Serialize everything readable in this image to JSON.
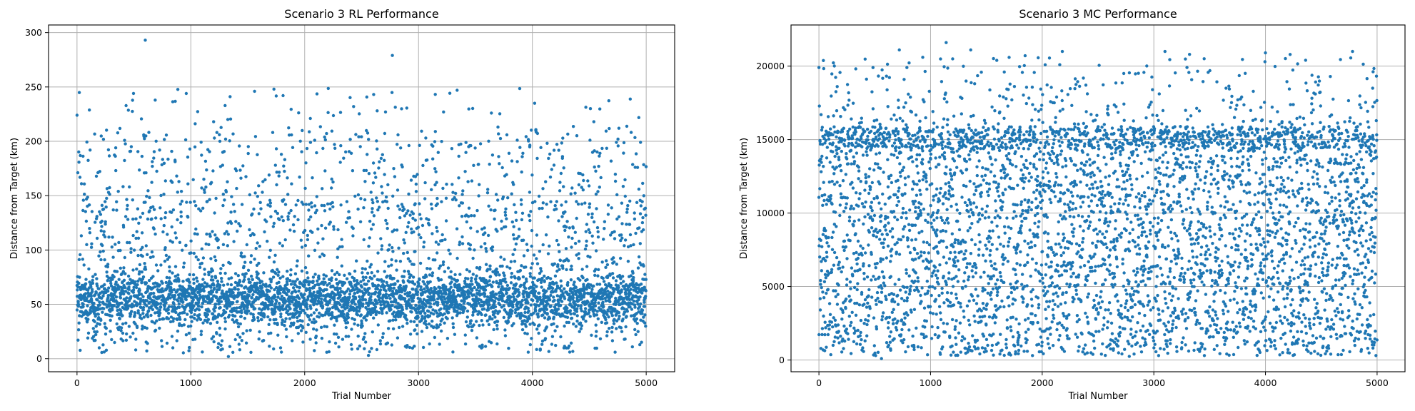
{
  "chart_data": [
    {
      "type": "scatter",
      "title": "Scenario 3 RL Performance",
      "xlabel": "Trial Number",
      "ylabel": "Distance from Target (km)",
      "xlim": [
        -250,
        5250
      ],
      "ylim": [
        -12,
        307
      ],
      "xticks": [
        0,
        1000,
        2000,
        3000,
        4000,
        5000
      ],
      "yticks": [
        0,
        50,
        100,
        150,
        200,
        250,
        300
      ],
      "grid": true,
      "color": "#1f77b4",
      "n_points": 5000,
      "distribution": "dense band mostly 0-150 km, concentrated around 20-80 km, sparse outliers up to ~295 km",
      "series": [
        {
          "values_sample": [
            {
              "x": 600,
              "y": 293
            },
            {
              "x": 2770,
              "y": 279
            },
            {
              "x": 1730,
              "y": 248
            },
            {
              "x": 1560,
              "y": 246
            },
            {
              "x": 960,
              "y": 244
            },
            {
              "x": 1810,
              "y": 242
            },
            {
              "x": 4020,
              "y": 235
            },
            {
              "x": 2430,
              "y": 232
            },
            {
              "x": 0,
              "y": 224
            },
            {
              "x": 3220,
              "y": 227
            },
            {
              "x": 3640,
              "y": 226
            },
            {
              "x": 2710,
              "y": 227
            },
            {
              "x": 4540,
              "y": 218
            },
            {
              "x": 1200,
              "y": 218
            },
            {
              "x": 2050,
              "y": 221
            },
            {
              "x": 4950,
              "y": 199
            },
            {
              "x": 4760,
              "y": 212
            },
            {
              "x": 2560,
              "y": 3
            },
            {
              "x": 1330,
              "y": 2
            }
          ]
        }
      ]
    },
    {
      "type": "scatter",
      "title": "Scenario 3 MC Performance",
      "xlabel": "Trial Number",
      "ylabel": "Distance from Target (km)",
      "xlim": [
        -250,
        5250
      ],
      "ylim": [
        -800,
        22800
      ],
      "xticks": [
        0,
        1000,
        2000,
        3000,
        4000,
        5000
      ],
      "yticks": [
        0,
        5000,
        10000,
        15000,
        20000
      ],
      "grid": true,
      "color": "#1f77b4",
      "n_points": 5000,
      "distribution": "roughly uniform 0-16000 km with a dense band near 15000-15800 km, sparse points between 16000 and 21700 km",
      "series": [
        {
          "values_sample": [
            {
              "x": 1140,
              "y": 21600
            },
            {
              "x": 1360,
              "y": 21100
            },
            {
              "x": 720,
              "y": 21100
            },
            {
              "x": 2180,
              "y": 21000
            },
            {
              "x": 3100,
              "y": 21000
            },
            {
              "x": 4780,
              "y": 21000
            },
            {
              "x": 4000,
              "y": 20900
            },
            {
              "x": 3320,
              "y": 20800
            },
            {
              "x": 930,
              "y": 20600
            },
            {
              "x": 4360,
              "y": 20400
            },
            {
              "x": 0,
              "y": 19900
            },
            {
              "x": 1660,
              "y": 19600
            },
            {
              "x": 4960,
              "y": 18500
            },
            {
              "x": 560,
              "y": 100
            },
            {
              "x": 2780,
              "y": 250
            },
            {
              "x": 4990,
              "y": 300
            }
          ]
        }
      ]
    }
  ]
}
